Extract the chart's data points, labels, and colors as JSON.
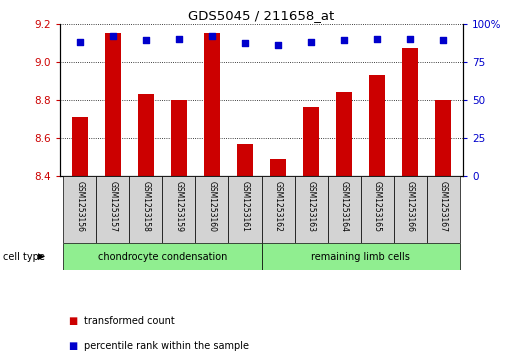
{
  "title": "GDS5045 / 211658_at",
  "samples": [
    "GSM1253156",
    "GSM1253157",
    "GSM1253158",
    "GSM1253159",
    "GSM1253160",
    "GSM1253161",
    "GSM1253162",
    "GSM1253163",
    "GSM1253164",
    "GSM1253165",
    "GSM1253166",
    "GSM1253167"
  ],
  "transformed_count": [
    8.71,
    9.15,
    8.83,
    8.8,
    9.15,
    8.57,
    8.49,
    8.76,
    8.84,
    8.93,
    9.07,
    8.8
  ],
  "percentile_rank": [
    88,
    92,
    89,
    90,
    92,
    87,
    86,
    88,
    89,
    90,
    90,
    89
  ],
  "ylim_left": [
    8.4,
    9.2
  ],
  "ylim_right": [
    0,
    100
  ],
  "yticks_left": [
    8.4,
    8.6,
    8.8,
    9.0,
    9.2
  ],
  "yticks_right": [
    0,
    25,
    50,
    75,
    100
  ],
  "bar_color": "#cc0000",
  "dot_color": "#0000cc",
  "bar_width": 0.5,
  "cell_type_groups": [
    {
      "label": "chondrocyte condensation",
      "start": 0,
      "end": 5
    },
    {
      "label": "remaining limb cells",
      "start": 6,
      "end": 11
    }
  ],
  "cell_type_label": "cell type",
  "group_color": "#90ee90",
  "legend_items": [
    {
      "label": "transformed count",
      "color": "#cc0000"
    },
    {
      "label": "percentile rank within the sample",
      "color": "#0000cc"
    }
  ],
  "tick_label_color_left": "#cc0000",
  "tick_label_color_right": "#0000cc",
  "sample_box_color": "#d3d3d3"
}
